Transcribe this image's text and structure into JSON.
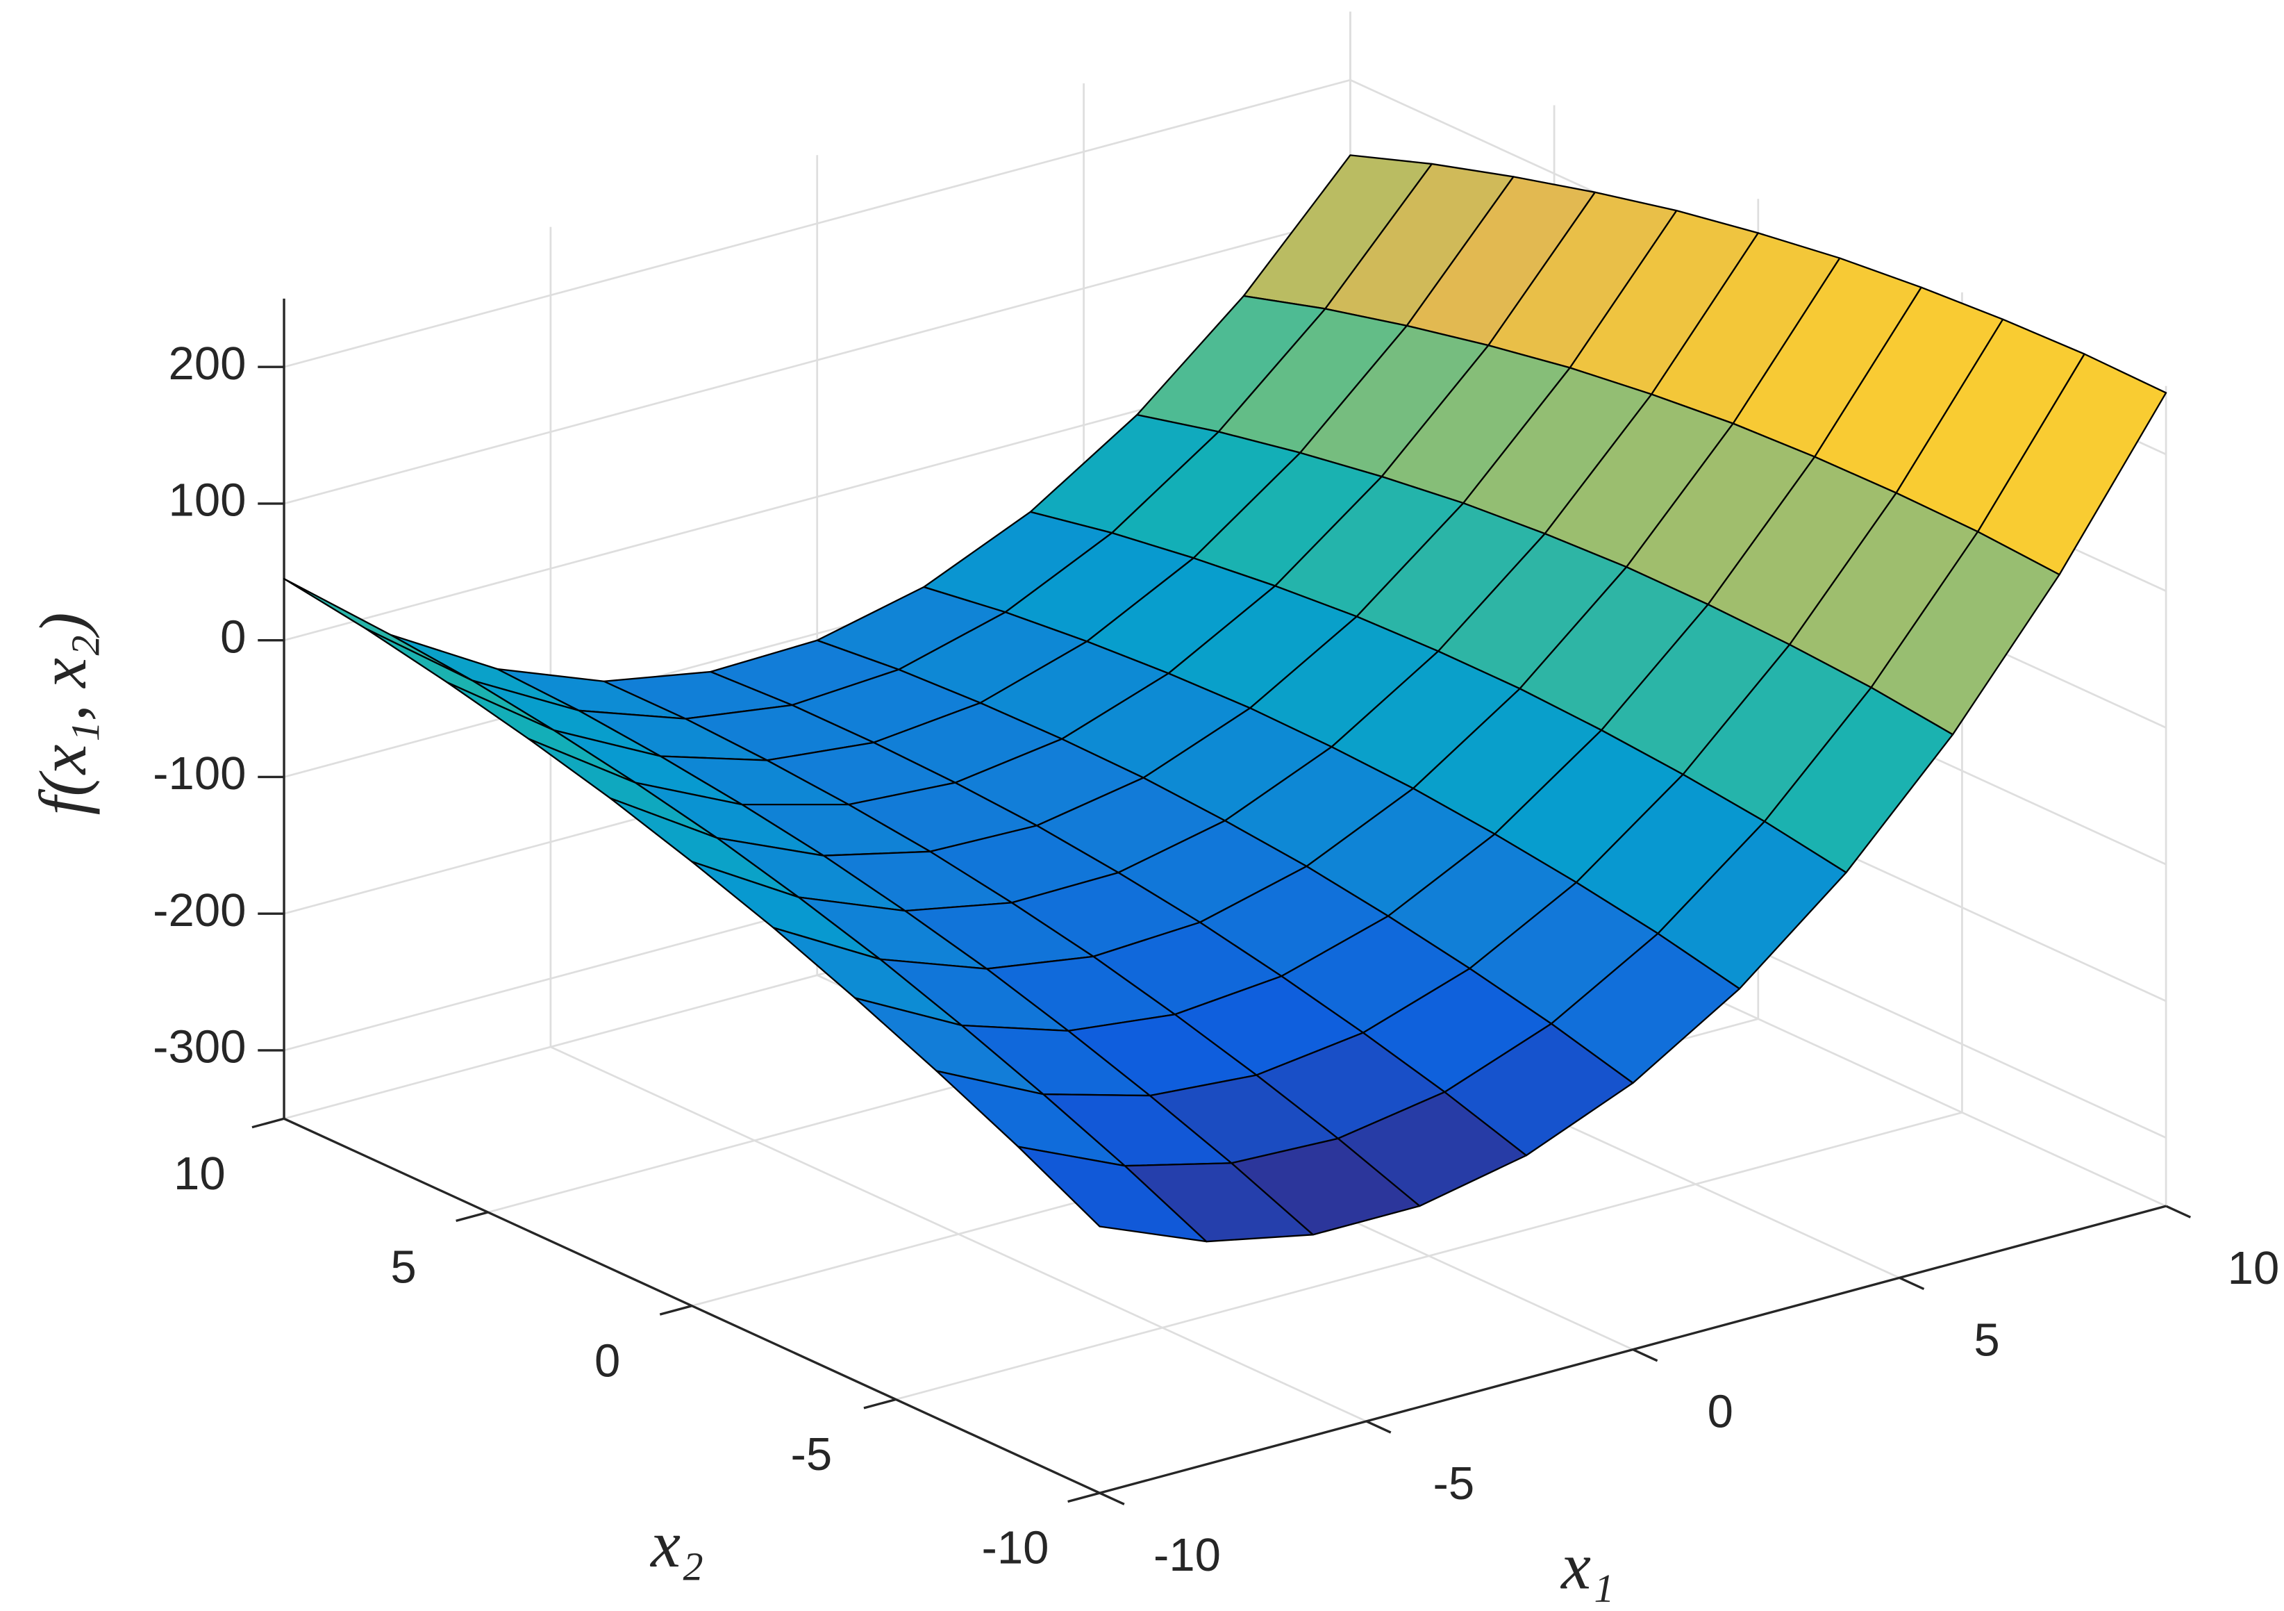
{
  "chart_data": {
    "type": "surface",
    "zlabel": "f(x₁, x₂)",
    "xlabel": "x₁",
    "ylabel": "x₂",
    "x": [
      -10,
      -8,
      -6,
      -4,
      -2,
      0,
      2,
      4,
      6,
      8,
      10
    ],
    "y": [
      -10,
      -8,
      -6,
      -4,
      -2,
      0,
      2,
      4,
      6,
      8,
      10
    ],
    "z": [
      [
        -155,
        -187,
        -203,
        -203,
        -187,
        -155,
        -107,
        -43,
        37,
        133,
        245
      ],
      [
        -124,
        -159,
        -178,
        -181,
        -168,
        -139,
        -94,
        -33,
        44,
        137,
        246
      ],
      [
        -96,
        -134,
        -156,
        -162,
        -152,
        -126,
        -84,
        -26,
        48,
        138,
        244
      ],
      [
        -70,
        -111,
        -136,
        -145,
        -138,
        -115,
        -76,
        -21,
        50,
        137,
        240
      ],
      [
        -46,
        -90,
        -118,
        -130,
        -126,
        -106,
        -70,
        -18,
        50,
        134,
        234
      ],
      [
        -25,
        -72,
        -103,
        -118,
        -117,
        -100,
        -67,
        -18,
        47,
        128,
        225
      ],
      [
        -6,
        -56,
        -90,
        -108,
        -110,
        -96,
        -66,
        -20,
        42,
        120,
        214
      ],
      [
        10,
        -43,
        -80,
        -101,
        -106,
        -95,
        -68,
        -25,
        34,
        109,
        200
      ],
      [
        24,
        -32,
        -72,
        -96,
        -104,
        -96,
        -72,
        -32,
        24,
        96,
        184
      ],
      [
        36,
        -23,
        -66,
        -93,
        -104,
        -99,
        -78,
        -41,
        12,
        81,
        166
      ],
      [
        45,
        -17,
        -63,
        -93,
        -107,
        -105,
        -87,
        -53,
        -3,
        63,
        145
      ]
    ],
    "xlim": [
      -10,
      10
    ],
    "ylim": [
      -10,
      10
    ],
    "zlim": [
      -350,
      250
    ],
    "xticks": [
      -10,
      -5,
      0,
      5,
      10
    ],
    "yticks": [
      -10,
      -5,
      0,
      5,
      10
    ],
    "zticks": [
      -300,
      -200,
      -100,
      0,
      100,
      200
    ],
    "grid": true,
    "colormap": "parula",
    "edgecolor": "#000000"
  }
}
